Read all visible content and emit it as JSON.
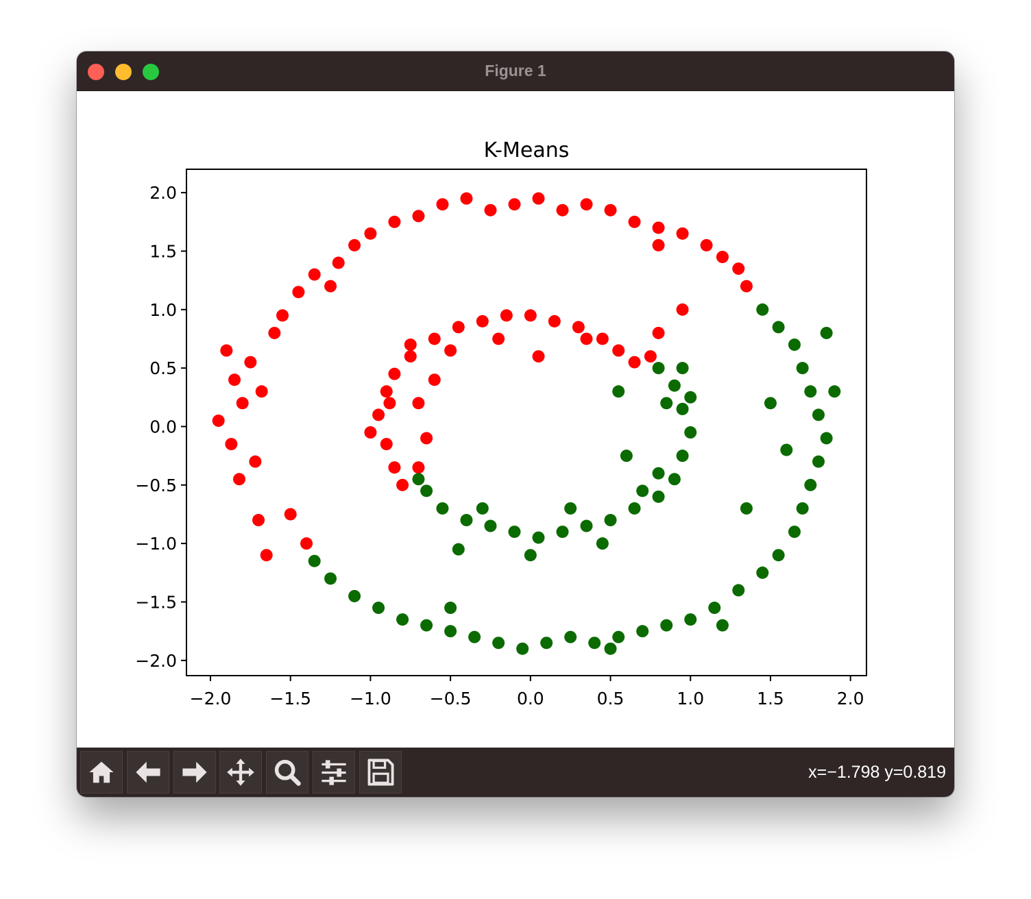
{
  "window": {
    "title": "Figure 1"
  },
  "toolbar": {
    "buttons": [
      {
        "icon": "home-icon"
      },
      {
        "icon": "back-arrow-icon"
      },
      {
        "icon": "forward-arrow-icon"
      },
      {
        "icon": "pan-move-icon"
      },
      {
        "icon": "zoom-magnifier-icon"
      },
      {
        "icon": "configure-subplots-icon"
      },
      {
        "icon": "save-floppy-icon"
      }
    ],
    "coordinates": "x=−1.798 y=0.819"
  },
  "colors": {
    "titlebar": "#302626",
    "cluster_red": "#ff0000",
    "cluster_green": "#0b6b00"
  },
  "chart_data": {
    "type": "scatter",
    "title": "K-Means",
    "xlabel": "",
    "ylabel": "",
    "xlim": [
      -2.15,
      2.1
    ],
    "ylim": [
      -2.13,
      2.2
    ],
    "xticks": [
      "−2.0",
      "−1.5",
      "−1.0",
      "−0.5",
      "0.0",
      "0.5",
      "1.0",
      "1.5",
      "2.0"
    ],
    "yticks": [
      "−2.0",
      "−1.5",
      "−1.0",
      "−0.5",
      "0.0",
      "0.5",
      "1.0",
      "1.5",
      "2.0"
    ],
    "grid": false,
    "series": [
      {
        "color": "#ff0000",
        "points": [
          [
            -1.9,
            0.65
          ],
          [
            -1.85,
            0.4
          ],
          [
            -1.95,
            0.05
          ],
          [
            -1.87,
            -0.15
          ],
          [
            -1.82,
            -0.45
          ],
          [
            -1.8,
            0.2
          ],
          [
            -1.75,
            0.55
          ],
          [
            -1.7,
            -0.8
          ],
          [
            -1.65,
            -1.1
          ],
          [
            -1.6,
            0.8
          ],
          [
            -1.55,
            0.95
          ],
          [
            -1.45,
            1.15
          ],
          [
            -1.35,
            1.3
          ],
          [
            -1.2,
            1.4
          ],
          [
            -1.1,
            1.55
          ],
          [
            -1.0,
            1.65
          ],
          [
            -0.85,
            1.75
          ],
          [
            -0.7,
            1.8
          ],
          [
            -0.55,
            1.9
          ],
          [
            -0.4,
            1.95
          ],
          [
            -0.25,
            1.85
          ],
          [
            -0.1,
            1.9
          ],
          [
            0.05,
            1.95
          ],
          [
            0.2,
            1.85
          ],
          [
            0.35,
            1.9
          ],
          [
            0.5,
            1.85
          ],
          [
            0.65,
            1.75
          ],
          [
            0.8,
            1.7
          ],
          [
            0.95,
            1.65
          ],
          [
            1.1,
            1.55
          ],
          [
            1.2,
            1.45
          ],
          [
            1.3,
            1.35
          ],
          [
            1.35,
            1.2
          ],
          [
            0.95,
            1.0
          ],
          [
            0.8,
            1.55
          ],
          [
            -1.25,
            1.2
          ],
          [
            -1.68,
            0.3
          ],
          [
            -1.72,
            -0.3
          ],
          [
            -1.5,
            -0.75
          ],
          [
            -1.4,
            -1.0
          ],
          [
            -0.9,
            0.3
          ],
          [
            -0.95,
            0.1
          ],
          [
            -0.9,
            -0.15
          ],
          [
            -0.85,
            -0.35
          ],
          [
            -0.8,
            -0.5
          ],
          [
            -0.85,
            0.45
          ],
          [
            -0.75,
            0.6
          ],
          [
            -0.6,
            0.75
          ],
          [
            -0.45,
            0.85
          ],
          [
            -0.3,
            0.9
          ],
          [
            -0.15,
            0.95
          ],
          [
            0.0,
            0.95
          ],
          [
            0.15,
            0.9
          ],
          [
            0.3,
            0.85
          ],
          [
            0.45,
            0.75
          ],
          [
            0.55,
            0.65
          ],
          [
            0.65,
            0.55
          ],
          [
            0.75,
            0.6
          ],
          [
            0.05,
            0.6
          ],
          [
            -0.6,
            0.4
          ],
          [
            -0.7,
            0.2
          ],
          [
            -0.65,
            -0.1
          ],
          [
            -0.7,
            -0.35
          ],
          [
            -1.0,
            -0.05
          ],
          [
            -0.75,
            0.7
          ],
          [
            0.35,
            0.75
          ],
          [
            0.8,
            0.8
          ],
          [
            -0.2,
            0.75
          ],
          [
            -0.5,
            0.65
          ],
          [
            -0.88,
            0.2
          ]
        ]
      },
      {
        "color": "#0b6b00",
        "points": [
          [
            1.45,
            1.0
          ],
          [
            1.55,
            0.85
          ],
          [
            1.65,
            0.7
          ],
          [
            1.7,
            0.5
          ],
          [
            1.75,
            0.3
          ],
          [
            1.8,
            0.1
          ],
          [
            1.85,
            -0.1
          ],
          [
            1.8,
            -0.3
          ],
          [
            1.75,
            -0.5
          ],
          [
            1.7,
            -0.7
          ],
          [
            1.65,
            -0.9
          ],
          [
            1.55,
            -1.1
          ],
          [
            1.45,
            -1.25
          ],
          [
            1.3,
            -1.4
          ],
          [
            1.15,
            -1.55
          ],
          [
            1.0,
            -1.65
          ],
          [
            0.85,
            -1.7
          ],
          [
            0.7,
            -1.75
          ],
          [
            0.55,
            -1.8
          ],
          [
            0.4,
            -1.85
          ],
          [
            0.25,
            -1.8
          ],
          [
            0.1,
            -1.85
          ],
          [
            -0.05,
            -1.9
          ],
          [
            -0.2,
            -1.85
          ],
          [
            -0.35,
            -1.8
          ],
          [
            -0.5,
            -1.75
          ],
          [
            -0.65,
            -1.7
          ],
          [
            -0.8,
            -1.65
          ],
          [
            -0.95,
            -1.55
          ],
          [
            -1.1,
            -1.45
          ],
          [
            -1.25,
            -1.3
          ],
          [
            -1.35,
            -1.15
          ],
          [
            1.9,
            0.3
          ],
          [
            1.5,
            0.2
          ],
          [
            1.6,
            -0.2
          ],
          [
            1.35,
            -0.7
          ],
          [
            0.5,
            -1.9
          ],
          [
            -0.5,
            -1.55
          ],
          [
            1.85,
            0.8
          ],
          [
            1.2,
            -1.7
          ],
          [
            0.8,
            0.5
          ],
          [
            0.9,
            0.35
          ],
          [
            0.95,
            0.15
          ],
          [
            1.0,
            -0.05
          ],
          [
            0.95,
            -0.25
          ],
          [
            0.9,
            -0.45
          ],
          [
            0.8,
            -0.6
          ],
          [
            0.65,
            -0.7
          ],
          [
            0.5,
            -0.8
          ],
          [
            0.35,
            -0.85
          ],
          [
            0.2,
            -0.9
          ],
          [
            0.05,
            -0.95
          ],
          [
            -0.1,
            -0.9
          ],
          [
            -0.25,
            -0.85
          ],
          [
            -0.4,
            -0.8
          ],
          [
            -0.55,
            -0.7
          ],
          [
            -0.65,
            -0.55
          ],
          [
            -0.7,
            -0.45
          ],
          [
            0.85,
            0.2
          ],
          [
            0.7,
            -0.55
          ],
          [
            0.55,
            0.3
          ],
          [
            0.6,
            -0.25
          ],
          [
            0.0,
            -1.1
          ],
          [
            -0.45,
            -1.05
          ],
          [
            0.45,
            -1.0
          ],
          [
            0.8,
            -0.4
          ],
          [
            0.95,
            0.5
          ],
          [
            -0.3,
            -0.7
          ],
          [
            0.25,
            -0.7
          ],
          [
            1.0,
            0.25
          ]
        ]
      }
    ]
  }
}
